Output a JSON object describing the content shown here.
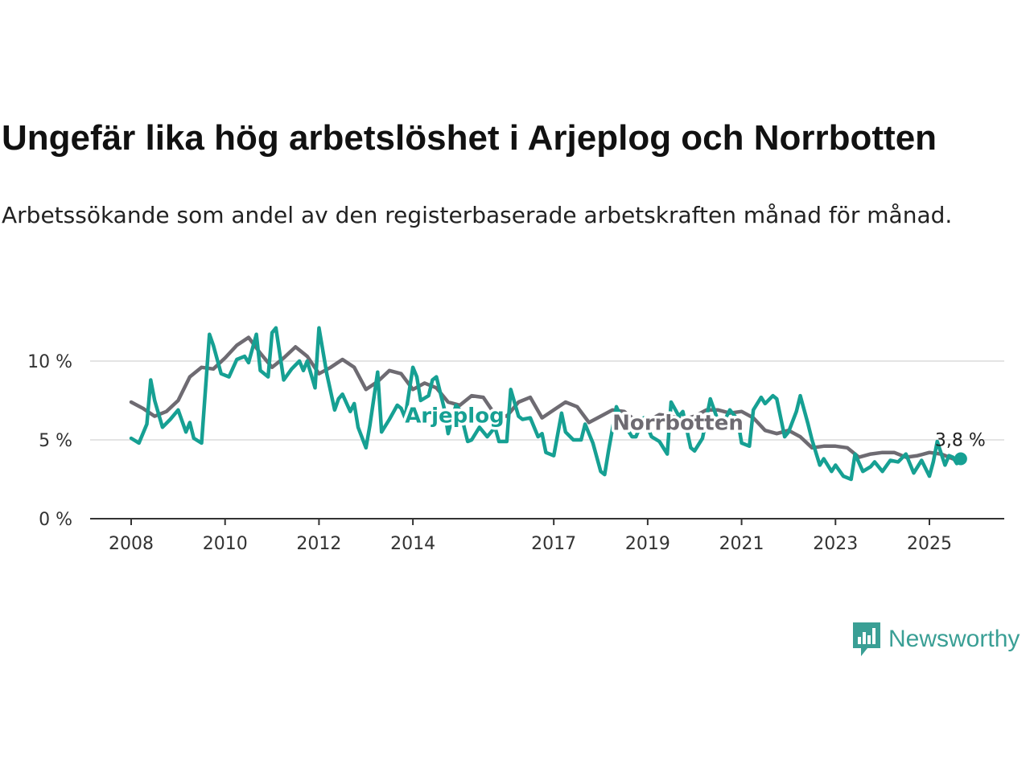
{
  "title": "Ungefär lika hög arbetslöshet i Arjeplog och Norrbotten",
  "subtitle": "Arbetssökande som andel av den registerbaserade arbetskraften månad för månad.",
  "brand": {
    "name": "Newsworthy",
    "icon": "newsworthy-logo-icon",
    "color": "#3a9f95"
  },
  "chart_data": {
    "type": "line",
    "title": "Ungefär lika hög arbetslöshet i Arjeplog och Norrbotten",
    "xlabel": "",
    "ylabel": "",
    "x_range": [
      "2008-01",
      "2025-09"
    ],
    "ylim": [
      0,
      12.5
    ],
    "y_ticks": [
      0,
      5,
      10
    ],
    "y_tick_labels": [
      "0 %",
      "5 %",
      "10 %"
    ],
    "x_ticks": [
      "2008",
      "2010",
      "2012",
      "2014",
      "2017",
      "2019",
      "2021",
      "2023",
      "2025"
    ],
    "grid": "horizontal",
    "last_value_label": "3,8 %",
    "series": [
      {
        "name": "Norrbotten",
        "color": "#6e6b72",
        "points": [
          [
            "2008-01",
            7.4
          ],
          [
            "2008-04",
            7.0
          ],
          [
            "2008-07",
            6.5
          ],
          [
            "2008-10",
            6.8
          ],
          [
            "2009-01",
            7.5
          ],
          [
            "2009-04",
            9.0
          ],
          [
            "2009-07",
            9.6
          ],
          [
            "2009-10",
            9.5
          ],
          [
            "2010-01",
            10.2
          ],
          [
            "2010-04",
            11.0
          ],
          [
            "2010-07",
            11.5
          ],
          [
            "2010-10",
            10.5
          ],
          [
            "2011-01",
            9.6
          ],
          [
            "2011-04",
            10.2
          ],
          [
            "2011-07",
            10.9
          ],
          [
            "2011-10",
            10.3
          ],
          [
            "2012-01",
            9.2
          ],
          [
            "2012-04",
            9.6
          ],
          [
            "2012-07",
            10.1
          ],
          [
            "2012-10",
            9.6
          ],
          [
            "2013-01",
            8.2
          ],
          [
            "2013-04",
            8.7
          ],
          [
            "2013-07",
            9.4
          ],
          [
            "2013-10",
            9.2
          ],
          [
            "2014-01",
            8.2
          ],
          [
            "2014-04",
            8.6
          ],
          [
            "2014-07",
            8.3
          ],
          [
            "2014-10",
            7.4
          ],
          [
            "2015-01",
            7.2
          ],
          [
            "2015-04",
            7.8
          ],
          [
            "2015-07",
            7.7
          ],
          [
            "2015-10",
            6.6
          ],
          [
            "2016-01",
            6.5
          ],
          [
            "2016-04",
            7.4
          ],
          [
            "2016-07",
            7.7
          ],
          [
            "2016-10",
            6.4
          ],
          [
            "2017-01",
            6.9
          ],
          [
            "2017-04",
            7.4
          ],
          [
            "2017-07",
            7.1
          ],
          [
            "2017-10",
            6.1
          ],
          [
            "2018-01",
            6.5
          ],
          [
            "2018-04",
            6.9
          ],
          [
            "2018-07",
            6.8
          ],
          [
            "2018-10",
            6.2
          ],
          [
            "2019-01",
            6.2
          ],
          [
            "2019-04",
            6.6
          ],
          [
            "2019-07",
            6.5
          ],
          [
            "2019-10",
            6.3
          ],
          [
            "2020-01",
            6.5
          ],
          [
            "2020-04",
            6.9
          ],
          [
            "2020-07",
            6.9
          ],
          [
            "2020-10",
            6.7
          ],
          [
            "2021-01",
            6.8
          ],
          [
            "2021-04",
            6.4
          ],
          [
            "2021-07",
            5.6
          ],
          [
            "2021-10",
            5.4
          ],
          [
            "2022-01",
            5.6
          ],
          [
            "2022-04",
            5.2
          ],
          [
            "2022-07",
            4.5
          ],
          [
            "2022-10",
            4.6
          ],
          [
            "2023-01",
            4.6
          ],
          [
            "2023-04",
            4.5
          ],
          [
            "2023-07",
            3.9
          ],
          [
            "2023-10",
            4.1
          ],
          [
            "2024-01",
            4.2
          ],
          [
            "2024-04",
            4.2
          ],
          [
            "2024-07",
            3.9
          ],
          [
            "2024-10",
            4.0
          ],
          [
            "2025-01",
            4.2
          ],
          [
            "2025-04",
            4.1
          ],
          [
            "2025-07",
            3.8
          ],
          [
            "2025-09",
            3.8
          ]
        ]
      },
      {
        "name": "Arjeplog",
        "color": "#16a093",
        "points": [
          [
            "2008-01",
            5.1
          ],
          [
            "2008-03",
            4.8
          ],
          [
            "2008-05",
            6.0
          ],
          [
            "2008-06",
            8.8
          ],
          [
            "2008-07",
            7.5
          ],
          [
            "2008-09",
            5.8
          ],
          [
            "2008-11",
            6.3
          ],
          [
            "2009-01",
            6.9
          ],
          [
            "2009-03",
            5.5
          ],
          [
            "2009-04",
            6.1
          ],
          [
            "2009-05",
            5.1
          ],
          [
            "2009-07",
            4.8
          ],
          [
            "2009-09",
            11.7
          ],
          [
            "2009-10",
            11.0
          ],
          [
            "2009-12",
            9.2
          ],
          [
            "2010-02",
            9.0
          ],
          [
            "2010-04",
            10.1
          ],
          [
            "2010-06",
            10.3
          ],
          [
            "2010-07",
            9.9
          ],
          [
            "2010-09",
            11.7
          ],
          [
            "2010-10",
            9.4
          ],
          [
            "2010-12",
            9.0
          ],
          [
            "2011-01",
            11.8
          ],
          [
            "2011-02",
            12.1
          ],
          [
            "2011-04",
            8.8
          ],
          [
            "2011-06",
            9.5
          ],
          [
            "2011-08",
            10.0
          ],
          [
            "2011-09",
            9.4
          ],
          [
            "2011-10",
            10.0
          ],
          [
            "2011-12",
            8.3
          ],
          [
            "2012-01",
            12.1
          ],
          [
            "2012-03",
            9.2
          ],
          [
            "2012-05",
            6.9
          ],
          [
            "2012-06",
            7.6
          ],
          [
            "2012-07",
            7.9
          ],
          [
            "2012-09",
            6.8
          ],
          [
            "2012-10",
            7.3
          ],
          [
            "2012-11",
            5.8
          ],
          [
            "2013-01",
            4.5
          ],
          [
            "2013-02",
            5.9
          ],
          [
            "2013-04",
            9.3
          ],
          [
            "2013-05",
            5.5
          ],
          [
            "2013-07",
            6.3
          ],
          [
            "2013-09",
            7.2
          ],
          [
            "2013-10",
            7.0
          ],
          [
            "2013-11",
            6.4
          ],
          [
            "2014-01",
            9.6
          ],
          [
            "2014-02",
            9.0
          ],
          [
            "2014-03",
            7.5
          ],
          [
            "2014-05",
            7.8
          ],
          [
            "2014-06",
            8.8
          ],
          [
            "2014-07",
            9.0
          ],
          [
            "2014-09",
            7.0
          ],
          [
            "2014-10",
            5.4
          ],
          [
            "2014-12",
            7.2
          ],
          [
            "2015-01",
            6.9
          ],
          [
            "2015-03",
            4.9
          ],
          [
            "2015-04",
            5.0
          ],
          [
            "2015-06",
            5.8
          ],
          [
            "2015-08",
            5.2
          ],
          [
            "2015-10",
            5.8
          ],
          [
            "2015-11",
            4.9
          ],
          [
            "2016-01",
            4.9
          ],
          [
            "2016-02",
            8.2
          ],
          [
            "2016-04",
            6.5
          ],
          [
            "2016-05",
            6.3
          ],
          [
            "2016-07",
            6.4
          ],
          [
            "2016-09",
            5.2
          ],
          [
            "2016-10",
            5.4
          ],
          [
            "2016-11",
            4.2
          ],
          [
            "2017-01",
            4.0
          ],
          [
            "2017-03",
            6.7
          ],
          [
            "2017-04",
            5.5
          ],
          [
            "2017-06",
            5.0
          ],
          [
            "2017-08",
            5.0
          ],
          [
            "2017-09",
            6.0
          ],
          [
            "2017-11",
            4.8
          ],
          [
            "2018-01",
            3.0
          ],
          [
            "2018-02",
            2.8
          ],
          [
            "2018-03",
            4.3
          ],
          [
            "2018-05",
            7.1
          ],
          [
            "2018-07",
            6.0
          ],
          [
            "2018-09",
            5.2
          ],
          [
            "2018-10",
            5.2
          ],
          [
            "2018-12",
            6.4
          ],
          [
            "2019-02",
            5.2
          ],
          [
            "2019-04",
            4.9
          ],
          [
            "2019-06",
            4.1
          ],
          [
            "2019-07",
            7.4
          ],
          [
            "2019-09",
            6.5
          ],
          [
            "2019-10",
            6.8
          ],
          [
            "2019-12",
            4.5
          ],
          [
            "2020-01",
            4.3
          ],
          [
            "2020-03",
            5.1
          ],
          [
            "2020-05",
            7.6
          ],
          [
            "2020-07",
            6.2
          ],
          [
            "2020-09",
            6.4
          ],
          [
            "2020-10",
            6.9
          ],
          [
            "2020-12",
            6.3
          ],
          [
            "2021-01",
            4.8
          ],
          [
            "2021-03",
            4.6
          ],
          [
            "2021-04",
            6.9
          ],
          [
            "2021-06",
            7.7
          ],
          [
            "2021-07",
            7.3
          ],
          [
            "2021-09",
            7.8
          ],
          [
            "2021-10",
            7.6
          ],
          [
            "2021-12",
            5.2
          ],
          [
            "2022-01",
            5.5
          ],
          [
            "2022-03",
            6.8
          ],
          [
            "2022-04",
            7.8
          ],
          [
            "2022-06",
            6.0
          ],
          [
            "2022-07",
            5.0
          ],
          [
            "2022-09",
            3.4
          ],
          [
            "2022-10",
            3.8
          ],
          [
            "2022-12",
            3.0
          ],
          [
            "2023-01",
            3.4
          ],
          [
            "2023-03",
            2.7
          ],
          [
            "2023-05",
            2.5
          ],
          [
            "2023-06",
            4.1
          ],
          [
            "2023-08",
            3.0
          ],
          [
            "2023-10",
            3.3
          ],
          [
            "2023-11",
            3.6
          ],
          [
            "2024-01",
            3.0
          ],
          [
            "2024-03",
            3.7
          ],
          [
            "2024-05",
            3.6
          ],
          [
            "2024-07",
            4.1
          ],
          [
            "2024-09",
            2.9
          ],
          [
            "2024-11",
            3.7
          ],
          [
            "2025-01",
            2.7
          ],
          [
            "2025-02",
            3.6
          ],
          [
            "2025-03",
            4.9
          ],
          [
            "2025-05",
            3.4
          ],
          [
            "2025-06",
            4.0
          ],
          [
            "2025-07",
            3.9
          ],
          [
            "2025-08",
            3.5
          ],
          [
            "2025-09",
            3.8
          ]
        ]
      }
    ]
  }
}
